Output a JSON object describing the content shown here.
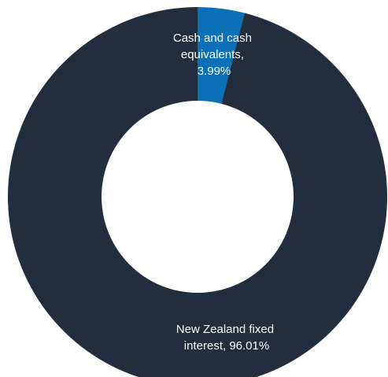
{
  "chart_data": {
    "type": "pie",
    "donut": true,
    "categories": [
      "Cash and cash equivalents",
      "New Zealand fixed interest"
    ],
    "values": [
      3.99,
      96.01
    ],
    "unit": "%",
    "colors": [
      "#0a70b7",
      "#222d3d"
    ],
    "labels": [
      [
        "Cash and cash",
        "equivalents,",
        "3.99%"
      ],
      [
        "New Zealand fixed",
        "interest, 96.01%"
      ]
    ],
    "start_angle": "12 o'clock",
    "direction": "clockwise",
    "legend": "none"
  }
}
